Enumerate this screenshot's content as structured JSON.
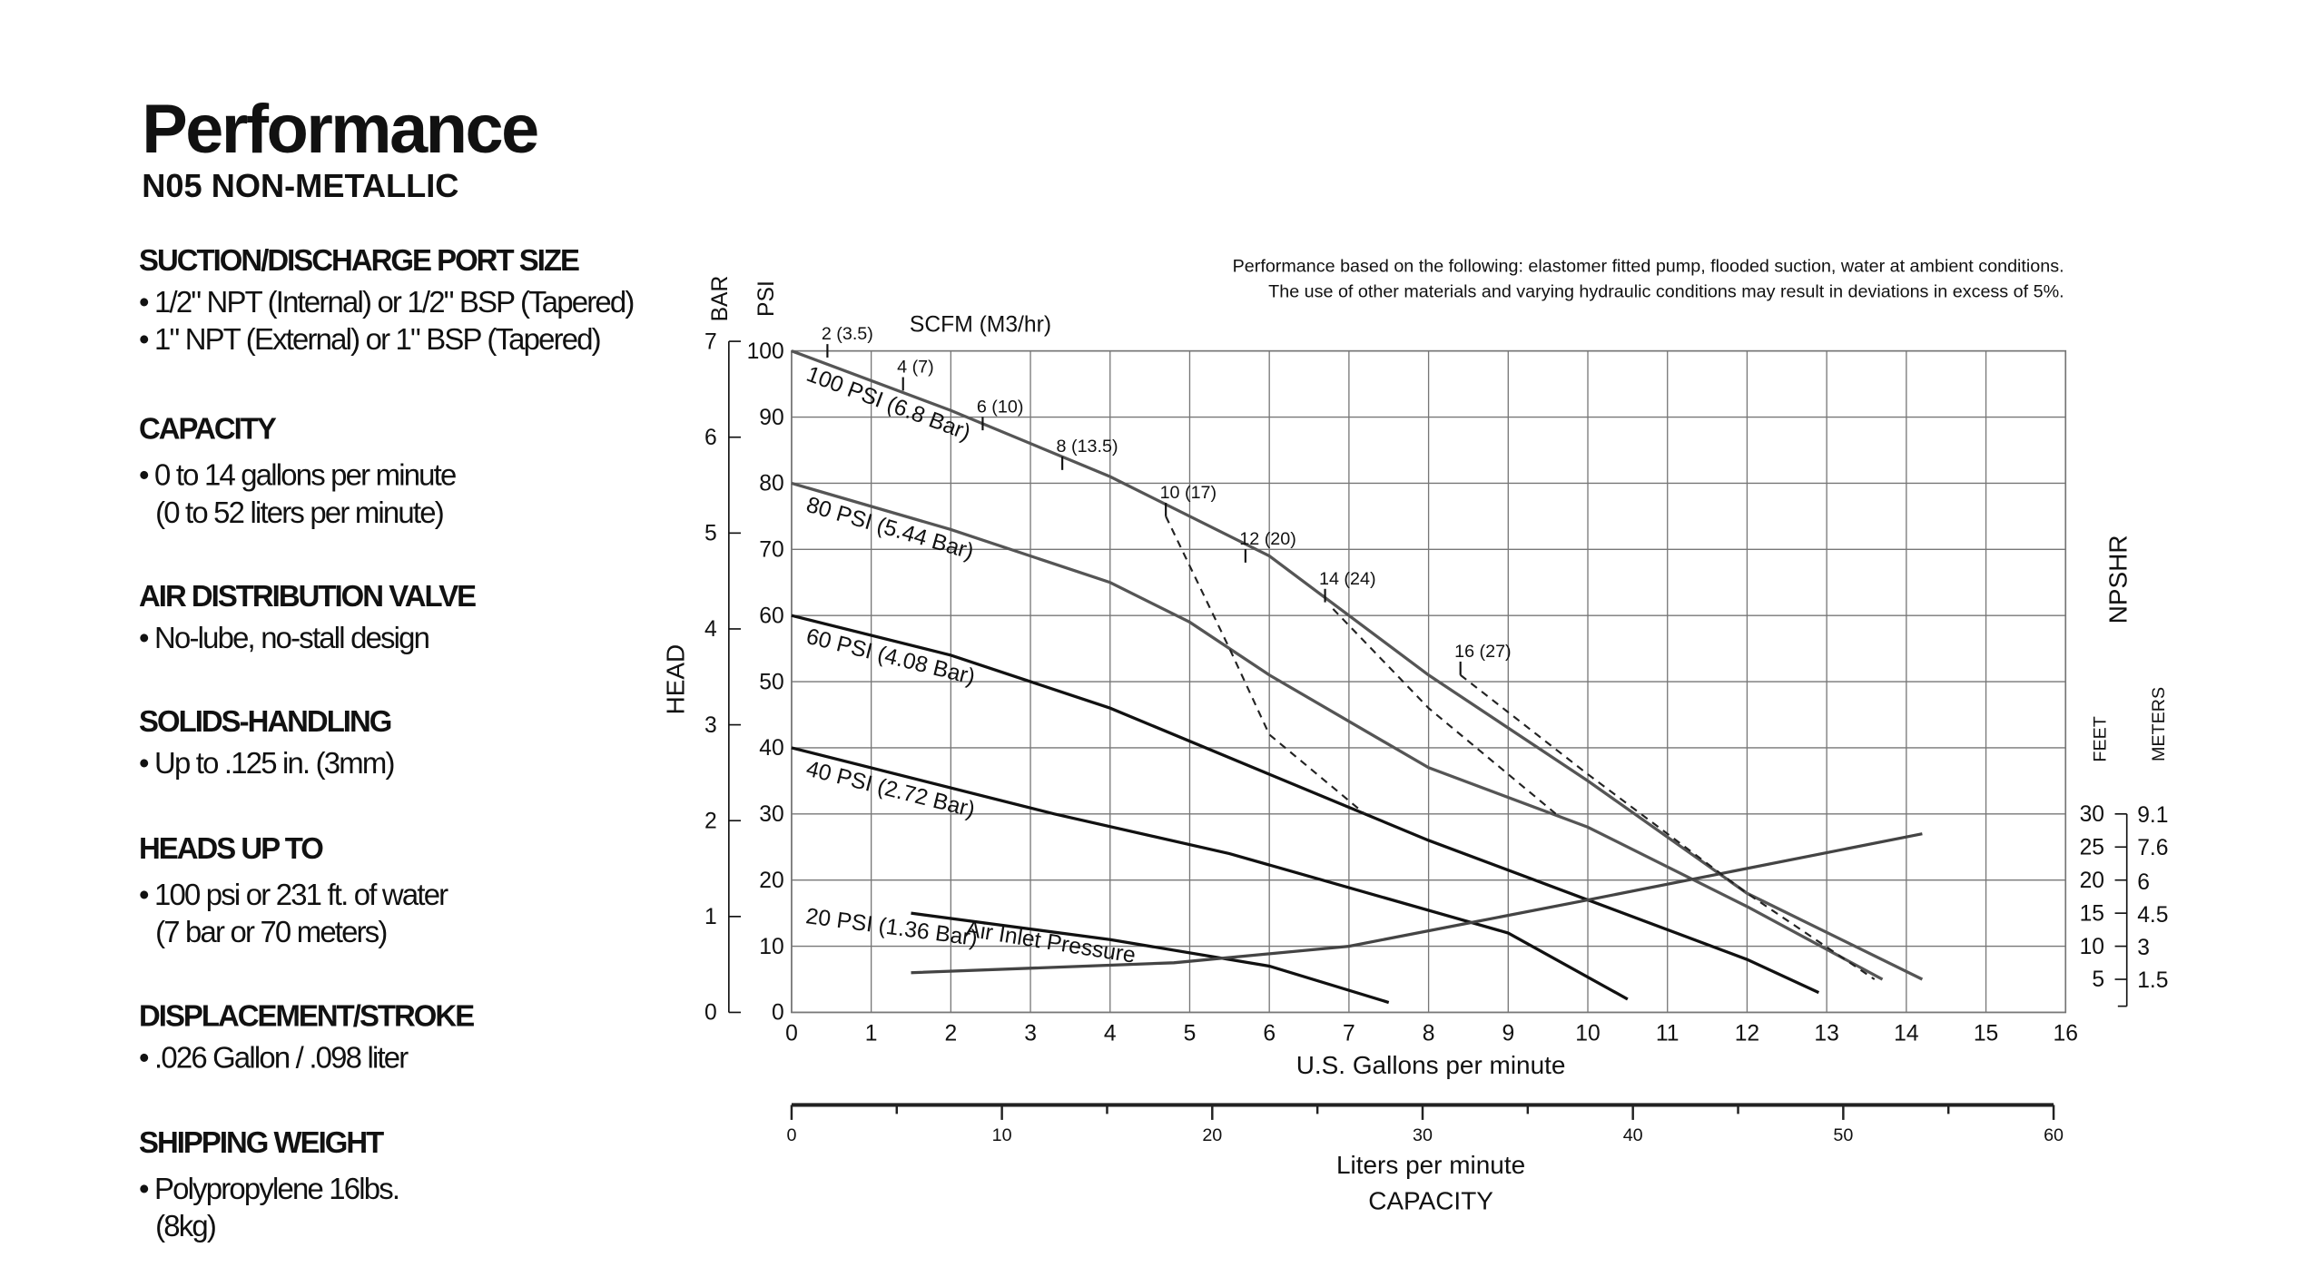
{
  "document": {
    "title": "Performance",
    "subtitle": "N05 NON-METALLIC",
    "sections": [
      {
        "heading": "SUCTION/DISCHARGE PORT SIZE",
        "lines": [
          "• 1/2\" NPT (Internal) or 1/2\" BSP (Tapered)",
          "• 1\" NPT (External) or 1\" BSP (Tapered)"
        ]
      },
      {
        "heading": "CAPACITY",
        "lines": [
          "• 0 to 14 gallons per minute",
          "(0 to 52 liters per minute)"
        ]
      },
      {
        "heading": "AIR DISTRIBUTION VALVE",
        "lines": [
          "• No-lube, no-stall design"
        ]
      },
      {
        "heading": "SOLIDS-HANDLING",
        "lines": [
          "• Up to .125 in. (3mm)"
        ]
      },
      {
        "heading": "HEADS UP TO",
        "lines": [
          "• 100 psi or 231 ft. of water",
          "(7 bar or 70 meters)"
        ]
      },
      {
        "heading": "DISPLACEMENT/STROKE",
        "lines": [
          "• .026 Gallon / .098 liter"
        ]
      },
      {
        "heading": "SHIPPING WEIGHT",
        "lines": [
          "• Polypropylene 16lbs.",
          "(8kg)"
        ]
      }
    ]
  },
  "chart_data": {
    "type": "line",
    "notes": [
      "Performance based on the following: elastomer fitted pump, flooded suction, water at ambient conditions.",
      "The use of other materials and varying hydraulic conditions may result in deviations in excess of 5%."
    ],
    "y_label": "HEAD",
    "y_unit": "PSI",
    "y2_unit": "BAR",
    "scfm_label": "SCFM (M3/hr)",
    "x_label": "U.S. Gallons per minute",
    "x2_label": "Liters per minute",
    "x2_sublabel": "CAPACITY",
    "npshr_label": "NPSHR",
    "y3_unit": "FEET",
    "y4_unit": "METERS",
    "xlim": [
      0,
      16
    ],
    "xticks": [
      0,
      1,
      2,
      3,
      4,
      5,
      6,
      7,
      8,
      9,
      10,
      11,
      12,
      13,
      14,
      15,
      16
    ],
    "ylim": [
      0,
      100
    ],
    "yticks": [
      0,
      10,
      20,
      30,
      40,
      50,
      60,
      70,
      80,
      90,
      100
    ],
    "y2lim": [
      0,
      6.9
    ],
    "y2ticks": [
      0,
      1,
      2,
      3,
      4,
      5,
      6,
      7
    ],
    "y3lim": [
      0,
      100
    ],
    "y3ticks": [
      5,
      10,
      15,
      20,
      25,
      30
    ],
    "y4lim": [
      0,
      30.48
    ],
    "y4ticks": [
      1.5,
      3,
      6,
      4.5,
      7.6,
      9.1
    ],
    "x2lim": [
      0,
      60.57
    ],
    "x2ticks": [
      0,
      10,
      20,
      30,
      40,
      50,
      60
    ],
    "x2minor": [
      5,
      15,
      25,
      35,
      45,
      55
    ],
    "grid": true,
    "series": [
      {
        "name": "100 PSI (6.8 Bar)",
        "color": "#555",
        "x": [
          0,
          2,
          4,
          6,
          8,
          10,
          12,
          14.2
        ],
        "values": [
          100,
          91,
          81,
          69,
          51,
          35,
          18,
          5
        ]
      },
      {
        "name": "80 PSI (5.44 Bar)",
        "color": "#555",
        "x": [
          0,
          2,
          4,
          5,
          6,
          8,
          10,
          12,
          13.7
        ],
        "values": [
          80,
          73,
          65,
          59,
          51,
          37,
          28,
          16,
          5
        ]
      },
      {
        "name": "60 PSI (4.08 Bar)",
        "color": "#111",
        "x": [
          0,
          2,
          4,
          6,
          8,
          10,
          12,
          12.9
        ],
        "values": [
          60,
          54,
          46,
          36,
          26,
          17,
          8,
          3
        ]
      },
      {
        "name": "40 PSI (2.72 Bar)",
        "color": "#111",
        "x": [
          0,
          3.3,
          5.5,
          9,
          10.5
        ],
        "values": [
          40,
          30,
          24,
          12,
          2
        ]
      },
      {
        "name": "20 PSI (1.36 Bar)",
        "color": "#111",
        "x": [
          1.5,
          4,
          6,
          7.5
        ],
        "values": [
          15,
          11,
          7,
          1.5
        ]
      },
      {
        "name": "Air Inlet Pressure",
        "color": "#444",
        "x": [
          1.5,
          4.8,
          7,
          10,
          14.2
        ],
        "values": [
          6,
          7.5,
          10,
          17,
          27
        ],
        "axis": "y3"
      },
      {
        "color": "#222",
        "dashed": true,
        "x": [
          4.7,
          5.5,
          6,
          7.2
        ],
        "values": [
          75,
          55,
          42,
          30
        ]
      },
      {
        "color": "#222",
        "dashed": true,
        "x": [
          6.8,
          8,
          9.6
        ],
        "values": [
          61,
          46,
          30
        ]
      },
      {
        "color": "#222",
        "dashed": true,
        "x": [
          8.4,
          10,
          12,
          13.6
        ],
        "values": [
          51,
          36,
          18,
          5
        ]
      }
    ],
    "scfm_marks": [
      {
        "label": "2 (3.5)",
        "x": 0.45,
        "y": 99
      },
      {
        "label": "4 (7)",
        "x": 1.4,
        "y": 94
      },
      {
        "label": "6 (10)",
        "x": 2.4,
        "y": 88
      },
      {
        "label": "8 (13.5)",
        "x": 3.4,
        "y": 82
      },
      {
        "label": "10 (17)",
        "x": 4.7,
        "y": 75
      },
      {
        "label": "12 (20)",
        "x": 5.7,
        "y": 68
      },
      {
        "label": "14 (24)",
        "x": 6.7,
        "y": 62
      },
      {
        "label": "16 (27)",
        "x": 8.4,
        "y": 51
      }
    ]
  }
}
